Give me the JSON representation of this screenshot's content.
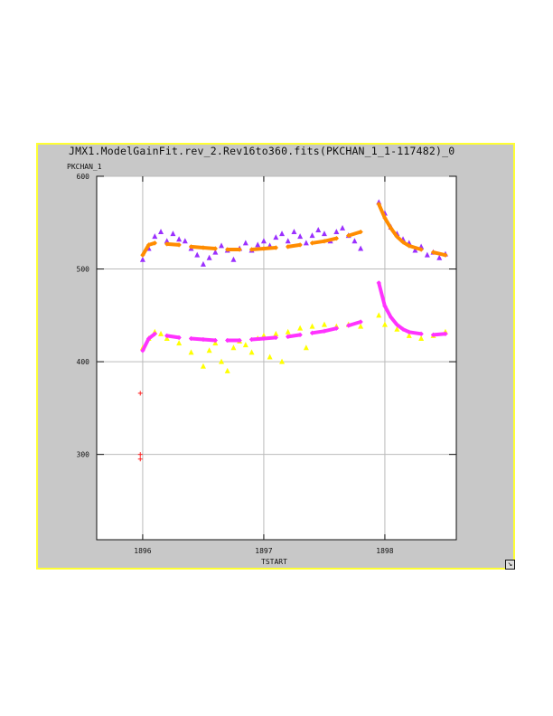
{
  "window": {
    "title": "JMX1.ModelGainFit.rev_2.Rev16to360.fits(PKCHAN_1_1-117482)_0"
  },
  "chart_data": {
    "type": "scatter",
    "title": "JMX1.ModelGainFit.rev_2.Rev16to360.fits(PKCHAN_1_1-117482)_0",
    "xlabel": "TSTART",
    "ylabel": "PKCHAN_1",
    "xlim": [
      1895.62,
      1898.59
    ],
    "ylim": [
      208,
      600
    ],
    "x_ticks": [
      1896,
      1897,
      1898
    ],
    "y_ticks": [
      300,
      400,
      500,
      600
    ],
    "grid": true,
    "series": [
      {
        "marker": "triangle",
        "color": "#9b30ff",
        "points": [
          [
            1896.0,
            510
          ],
          [
            1896.05,
            522
          ],
          [
            1896.1,
            535
          ],
          [
            1896.15,
            540
          ],
          [
            1896.2,
            530
          ],
          [
            1896.25,
            538
          ],
          [
            1896.3,
            532
          ],
          [
            1896.35,
            530
          ],
          [
            1896.4,
            522
          ],
          [
            1896.45,
            515
          ],
          [
            1896.5,
            505
          ],
          [
            1896.55,
            512
          ],
          [
            1896.6,
            518
          ],
          [
            1896.65,
            525
          ],
          [
            1896.7,
            520
          ],
          [
            1896.75,
            510
          ],
          [
            1896.8,
            522
          ],
          [
            1896.85,
            528
          ],
          [
            1896.9,
            520
          ],
          [
            1896.95,
            526
          ],
          [
            1897.0,
            530
          ],
          [
            1897.05,
            525
          ],
          [
            1897.1,
            534
          ],
          [
            1897.15,
            538
          ],
          [
            1897.2,
            530
          ],
          [
            1897.25,
            540
          ],
          [
            1897.3,
            535
          ],
          [
            1897.35,
            528
          ],
          [
            1897.4,
            536
          ],
          [
            1897.45,
            542
          ],
          [
            1897.5,
            538
          ],
          [
            1897.55,
            530
          ],
          [
            1897.6,
            540
          ],
          [
            1897.65,
            544
          ],
          [
            1897.7,
            536
          ],
          [
            1897.75,
            530
          ],
          [
            1897.8,
            522
          ],
          [
            1897.95,
            572
          ],
          [
            1898.0,
            560
          ],
          [
            1898.05,
            545
          ],
          [
            1898.1,
            538
          ],
          [
            1898.15,
            532
          ],
          [
            1898.2,
            528
          ],
          [
            1898.25,
            520
          ],
          [
            1898.3,
            524
          ],
          [
            1898.35,
            515
          ],
          [
            1898.4,
            518
          ],
          [
            1898.45,
            512
          ],
          [
            1898.5,
            516
          ]
        ]
      },
      {
        "marker": "plus",
        "color": "#ff8c00",
        "fit": true,
        "points": [
          [
            1896.0,
            515
          ],
          [
            1896.05,
            526
          ],
          [
            1896.1,
            528
          ],
          [
            1896.2,
            527
          ],
          [
            1896.3,
            526
          ],
          [
            1896.4,
            524
          ],
          [
            1896.5,
            523
          ],
          [
            1896.6,
            522
          ],
          [
            1896.7,
            521
          ],
          [
            1896.8,
            521
          ],
          [
            1896.9,
            521
          ],
          [
            1897.0,
            522
          ],
          [
            1897.1,
            523
          ],
          [
            1897.2,
            524
          ],
          [
            1897.3,
            526
          ],
          [
            1897.4,
            528
          ],
          [
            1897.5,
            530
          ],
          [
            1897.6,
            533
          ],
          [
            1897.7,
            536
          ],
          [
            1897.8,
            540
          ],
          [
            1897.95,
            570
          ],
          [
            1898.0,
            555
          ],
          [
            1898.05,
            544
          ],
          [
            1898.1,
            535
          ],
          [
            1898.15,
            529
          ],
          [
            1898.2,
            525
          ],
          [
            1898.3,
            521
          ],
          [
            1898.4,
            518
          ],
          [
            1898.5,
            515
          ]
        ]
      },
      {
        "marker": "triangle",
        "color": "#ffff00",
        "points": [
          [
            1896.0,
            415
          ],
          [
            1896.05,
            425
          ],
          [
            1896.1,
            432
          ],
          [
            1896.15,
            430
          ],
          [
            1896.2,
            425
          ],
          [
            1896.3,
            420
          ],
          [
            1896.4,
            410
          ],
          [
            1896.5,
            395
          ],
          [
            1896.55,
            412
          ],
          [
            1896.6,
            420
          ],
          [
            1896.65,
            400
          ],
          [
            1896.7,
            390
          ],
          [
            1896.75,
            415
          ],
          [
            1896.8,
            422
          ],
          [
            1896.85,
            418
          ],
          [
            1896.9,
            410
          ],
          [
            1896.95,
            425
          ],
          [
            1897.0,
            428
          ],
          [
            1897.05,
            405
          ],
          [
            1897.1,
            430
          ],
          [
            1897.15,
            400
          ],
          [
            1897.2,
            432
          ],
          [
            1897.3,
            436
          ],
          [
            1897.35,
            415
          ],
          [
            1897.4,
            438
          ],
          [
            1897.5,
            440
          ],
          [
            1897.6,
            438
          ],
          [
            1897.7,
            440
          ],
          [
            1897.8,
            438
          ],
          [
            1897.95,
            450
          ],
          [
            1898.0,
            440
          ],
          [
            1898.1,
            435
          ],
          [
            1898.2,
            428
          ],
          [
            1898.3,
            425
          ],
          [
            1898.4,
            428
          ],
          [
            1898.5,
            432
          ]
        ]
      },
      {
        "marker": "plus",
        "color": "#ff33ff",
        "fit": true,
        "points": [
          [
            1896.0,
            412
          ],
          [
            1896.05,
            425
          ],
          [
            1896.1,
            430
          ],
          [
            1896.2,
            428
          ],
          [
            1896.3,
            426
          ],
          [
            1896.4,
            425
          ],
          [
            1896.5,
            424
          ],
          [
            1896.6,
            423
          ],
          [
            1896.7,
            423
          ],
          [
            1896.8,
            423
          ],
          [
            1896.9,
            424
          ],
          [
            1897.0,
            425
          ],
          [
            1897.1,
            426
          ],
          [
            1897.2,
            427
          ],
          [
            1897.3,
            429
          ],
          [
            1897.4,
            431
          ],
          [
            1897.5,
            433
          ],
          [
            1897.6,
            436
          ],
          [
            1897.7,
            439
          ],
          [
            1897.8,
            443
          ],
          [
            1897.95,
            485
          ],
          [
            1898.0,
            460
          ],
          [
            1898.05,
            448
          ],
          [
            1898.1,
            440
          ],
          [
            1898.15,
            435
          ],
          [
            1898.2,
            432
          ],
          [
            1898.3,
            430
          ],
          [
            1898.4,
            429
          ],
          [
            1898.5,
            430
          ]
        ]
      },
      {
        "marker": "plus",
        "color": "#ff2222",
        "points": [
          [
            1895.98,
            366
          ],
          [
            1895.98,
            300
          ],
          [
            1895.98,
            295
          ]
        ]
      }
    ]
  }
}
